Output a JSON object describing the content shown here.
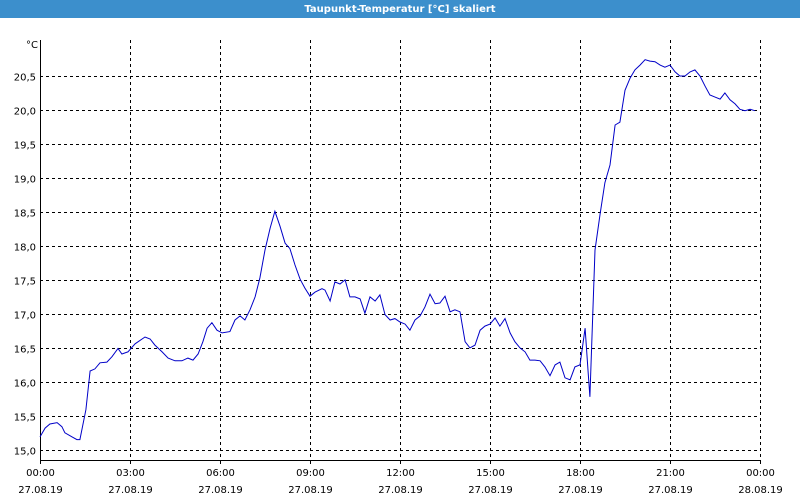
{
  "chart_data": {
    "type": "line",
    "title": "Taupunkt-Temperatur [°C] skaliert",
    "y_label": "°C",
    "x": [
      0,
      0.17,
      0.33,
      0.57,
      0.73,
      0.83,
      1.07,
      1.23,
      1.33,
      1.53,
      1.67,
      1.83,
      2,
      2.23,
      2.4,
      2.6,
      2.73,
      2.93,
      3.17,
      3.5,
      3.67,
      3.83,
      4.07,
      4.27,
      4.5,
      4.73,
      4.93,
      5.1,
      5.27,
      5.43,
      5.57,
      5.73,
      5.9,
      6.07,
      6.33,
      6.5,
      6.67,
      6.83,
      7,
      7.17,
      7.33,
      7.5,
      7.67,
      7.83,
      8,
      8.17,
      8.33,
      8.5,
      8.67,
      8.83,
      9,
      9.17,
      9.4,
      9.5,
      9.67,
      9.83,
      10,
      10.17,
      10.33,
      10.5,
      10.67,
      10.83,
      11,
      11.17,
      11.33,
      11.5,
      11.67,
      11.83,
      12,
      12.17,
      12.33,
      12.5,
      12.67,
      12.83,
      13,
      13.17,
      13.33,
      13.5,
      13.67,
      13.83,
      14,
      14.17,
      14.33,
      14.5,
      14.67,
      14.83,
      15,
      15.17,
      15.33,
      15.5,
      15.67,
      15.83,
      16,
      16.17,
      16.33,
      16.5,
      16.67,
      16.83,
      17,
      17.17,
      17.33,
      17.5,
      17.67,
      17.83,
      18,
      18.17,
      18.27,
      18.33,
      18.5,
      18.67,
      18.83,
      19,
      19.17,
      19.33,
      19.5,
      19.67,
      19.83,
      20,
      20.17,
      20.33,
      20.5,
      20.67,
      20.83,
      21,
      21.17,
      21.33,
      21.5,
      21.67,
      21.83,
      22,
      22.17,
      22.33,
      22.5,
      22.67,
      22.83,
      23,
      23.17,
      23.33,
      23.5,
      23.67,
      23.83
    ],
    "series": [
      {
        "name": "Taupunkt-Temperatur",
        "color": "#0000c8",
        "values": [
          15.19,
          15.32,
          15.38,
          15.4,
          15.34,
          15.25,
          15.19,
          15.15,
          15.15,
          15.59,
          16.16,
          16.19,
          16.28,
          16.29,
          16.37,
          16.49,
          16.41,
          16.44,
          16.56,
          16.66,
          16.63,
          16.54,
          16.44,
          16.35,
          16.31,
          16.31,
          16.35,
          16.32,
          16.41,
          16.59,
          16.79,
          16.87,
          16.76,
          16.72,
          16.74,
          16.91,
          16.97,
          16.91,
          17.06,
          17.25,
          17.53,
          17.94,
          18.26,
          18.51,
          18.29,
          18.04,
          17.96,
          17.72,
          17.51,
          17.38,
          17.26,
          17.32,
          17.37,
          17.35,
          17.19,
          17.47,
          17.44,
          17.5,
          17.25,
          17.25,
          17.22,
          17.01,
          17.25,
          17.19,
          17.28,
          16.99,
          16.91,
          16.93,
          16.88,
          16.85,
          16.76,
          16.91,
          16.97,
          17.1,
          17.29,
          17.15,
          17.16,
          17.26,
          17.03,
          17.06,
          17.03,
          16.59,
          16.5,
          16.54,
          16.76,
          16.82,
          16.85,
          16.94,
          16.82,
          16.93,
          16.72,
          16.59,
          16.5,
          16.44,
          16.32,
          16.32,
          16.31,
          16.22,
          16.09,
          16.25,
          16.29,
          16.06,
          16.03,
          16.22,
          16.25,
          16.79,
          16.15,
          15.78,
          17.94,
          18.47,
          18.93,
          19.19,
          19.78,
          19.82,
          20.29,
          20.47,
          20.59,
          20.66,
          20.74,
          20.72,
          20.71,
          20.66,
          20.63,
          20.66,
          20.56,
          20.5,
          20.5,
          20.56,
          20.59,
          20.5,
          20.35,
          20.22,
          20.19,
          20.16,
          20.25,
          20.15,
          20.09,
          20.01,
          19.99,
          20.01,
          19.99
        ]
      }
    ],
    "xlim": [
      0,
      24
    ],
    "xticks": [
      {
        "value": 0,
        "label": "00:00",
        "date": "27.08.19"
      },
      {
        "value": 3,
        "label": "03:00",
        "date": "27.08.19"
      },
      {
        "value": 6,
        "label": "06:00",
        "date": "27.08.19"
      },
      {
        "value": 9,
        "label": "09:00",
        "date": "27.08.19"
      },
      {
        "value": 12,
        "label": "12:00",
        "date": "27.08.19"
      },
      {
        "value": 15,
        "label": "15:00",
        "date": "27.08.19"
      },
      {
        "value": 18,
        "label": "18:00",
        "date": "27.08.19"
      },
      {
        "value": 21,
        "label": "21:00",
        "date": "27.08.19"
      },
      {
        "value": 24,
        "label": "00:00",
        "date": "28.08.19"
      }
    ],
    "ylim": [
      14.85,
      21.03
    ],
    "yticks": [
      {
        "value": 15,
        "label": "15,0"
      },
      {
        "value": 15.5,
        "label": "15,5"
      },
      {
        "value": 16,
        "label": "16,0"
      },
      {
        "value": 16.5,
        "label": "16,5"
      },
      {
        "value": 17,
        "label": "17,0"
      },
      {
        "value": 17.5,
        "label": "17,5"
      },
      {
        "value": 18,
        "label": "18,0"
      },
      {
        "value": 18.5,
        "label": "18,5"
      },
      {
        "value": 19,
        "label": "19,0"
      },
      {
        "value": 19.5,
        "label": "19,5"
      },
      {
        "value": 20,
        "label": "20,0"
      },
      {
        "value": 20.5,
        "label": "20,5"
      }
    ],
    "grid": true
  }
}
